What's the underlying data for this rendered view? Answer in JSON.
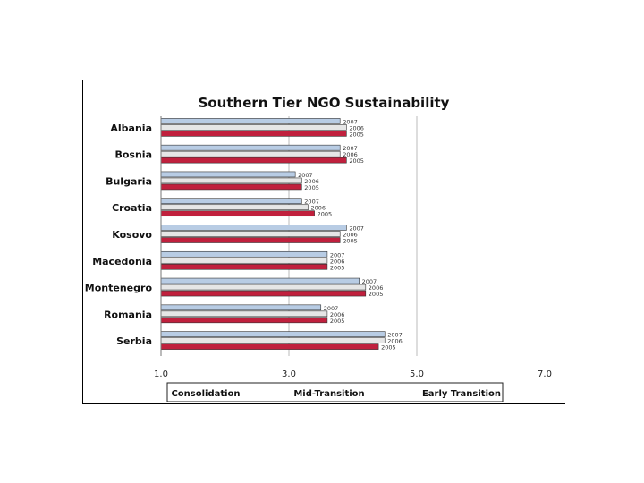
{
  "chart_data": {
    "type": "bar",
    "orientation": "horizontal",
    "title": "Southern Tier NGO Sustainability",
    "categories": [
      "Albania",
      "Bosnia",
      "Bulgaria",
      "Croatia",
      "Kosovo",
      "Macedonia",
      "Montenegro",
      "Romania",
      "Serbia"
    ],
    "series": [
      {
        "name": "2007",
        "color": "#b8cce4",
        "values": [
          3.8,
          3.8,
          3.1,
          3.2,
          3.9,
          3.6,
          4.1,
          3.5,
          4.5
        ]
      },
      {
        "name": "2006",
        "color": "#e6e6e6",
        "values": [
          3.9,
          3.8,
          3.2,
          3.3,
          3.8,
          3.6,
          4.2,
          3.6,
          4.5
        ]
      },
      {
        "name": "2005",
        "color": "#c0203d",
        "values": [
          3.9,
          3.9,
          3.2,
          3.4,
          3.8,
          3.6,
          4.2,
          3.6,
          4.4
        ]
      }
    ],
    "xlim": [
      1.0,
      7.0
    ],
    "xticks": [
      "1.0",
      "3.0",
      "5.0",
      "7.0"
    ],
    "grid": "vertical lines at 3.0 and 5.0",
    "stage_labels": [
      "Consolidation",
      "Mid-Transition",
      "Early Transition"
    ]
  }
}
